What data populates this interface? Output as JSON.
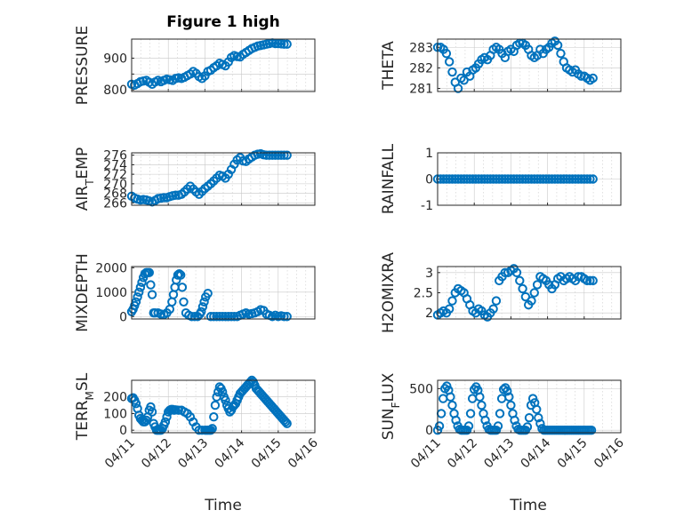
{
  "figure": {
    "title": "Figure 1 high",
    "marker_color": "#0072BD",
    "xlabel": "Time"
  },
  "chart_data": [
    {
      "type": "scatter",
      "ylabel": "PRESSURE",
      "ylabel_sub": "",
      "xlim": [
        0,
        5
      ],
      "ylim": [
        795,
        960
      ],
      "xticks": [
        "04/11",
        "04/12",
        "04/13",
        "04/14",
        "04/15",
        "04/16"
      ],
      "yticks": [
        800,
        850,
        900
      ],
      "ytick_labels": [
        "800",
        "",
        "900"
      ],
      "show_xticklabels": false,
      "show_title": true,
      "x": [
        0.0,
        0.08,
        0.16,
        0.24,
        0.32,
        0.4,
        0.48,
        0.56,
        0.64,
        0.72,
        0.8,
        0.88,
        0.96,
        1.04,
        1.12,
        1.2,
        1.28,
        1.36,
        1.44,
        1.52,
        1.6,
        1.68,
        1.76,
        1.84,
        1.92,
        2.0,
        2.08,
        2.16,
        2.24,
        2.32,
        2.4,
        2.48,
        2.56,
        2.64,
        2.72,
        2.8,
        2.88,
        2.96,
        3.04,
        3.12,
        3.2,
        3.28,
        3.36,
        3.44,
        3.52,
        3.6,
        3.68,
        3.76,
        3.84,
        3.92,
        4.0,
        4.08,
        4.16,
        4.24
      ],
      "y": [
        818,
        815,
        820,
        826,
        828,
        830,
        824,
        818,
        825,
        830,
        826,
        830,
        834,
        832,
        830,
        836,
        838,
        836,
        840,
        845,
        850,
        858,
        852,
        842,
        836,
        844,
        858,
        862,
        870,
        876,
        884,
        880,
        876,
        888,
        902,
        908,
        905,
        904,
        912,
        918,
        924,
        930,
        934,
        938,
        940,
        942,
        944,
        946,
        948,
        946,
        946,
        945,
        944,
        944
      ]
    },
    {
      "type": "scatter",
      "ylabel": "THETA",
      "ylabel_sub": "",
      "xlim": [
        0,
        5
      ],
      "ylim": [
        280.85,
        283.4
      ],
      "xticks": [
        "04/11",
        "04/12",
        "04/13",
        "04/14",
        "04/15",
        "04/16"
      ],
      "yticks": [
        281,
        282,
        283
      ],
      "ytick_labels": [
        "281",
        "282",
        "283"
      ],
      "show_xticklabels": false,
      "show_title": false,
      "x": [
        0.0,
        0.08,
        0.16,
        0.24,
        0.32,
        0.4,
        0.48,
        0.56,
        0.64,
        0.72,
        0.8,
        0.88,
        0.96,
        1.04,
        1.12,
        1.2,
        1.28,
        1.36,
        1.44,
        1.52,
        1.6,
        1.68,
        1.76,
        1.84,
        1.92,
        2.0,
        2.08,
        2.16,
        2.24,
        2.32,
        2.4,
        2.48,
        2.56,
        2.64,
        2.72,
        2.8,
        2.88,
        2.96,
        3.04,
        3.12,
        3.2,
        3.28,
        3.36,
        3.44,
        3.52,
        3.6,
        3.68,
        3.76,
        3.84,
        3.92,
        4.0,
        4.08,
        4.16,
        4.24
      ],
      "y": [
        283.0,
        283.0,
        282.9,
        282.7,
        282.3,
        281.8,
        281.3,
        281.0,
        281.5,
        281.4,
        281.8,
        281.6,
        281.9,
        282.0,
        282.2,
        282.4,
        282.5,
        282.4,
        282.6,
        282.9,
        283.0,
        282.9,
        282.7,
        282.5,
        282.8,
        282.9,
        282.8,
        283.1,
        283.2,
        283.2,
        283.1,
        282.9,
        282.6,
        282.5,
        282.6,
        282.9,
        282.7,
        282.9,
        283.0,
        283.2,
        283.3,
        283.1,
        282.7,
        282.3,
        282.0,
        281.9,
        281.8,
        281.9,
        281.7,
        281.6,
        281.6,
        281.5,
        281.4,
        281.5
      ]
    },
    {
      "type": "scatter",
      "ylabel": "AIR",
      "ylabel_sub": "T",
      "ylabel_tail": "EMP",
      "xlim": [
        0,
        5
      ],
      "ylim": [
        265.5,
        276.5
      ],
      "xticks": [
        "04/11",
        "04/12",
        "04/13",
        "04/14",
        "04/15",
        "04/16"
      ],
      "yticks": [
        266,
        268,
        270,
        272,
        274,
        276
      ],
      "ytick_labels": [
        "266",
        "268",
        "270",
        "272",
        "274",
        "276"
      ],
      "show_xticklabels": false,
      "show_title": false,
      "x": [
        0.0,
        0.08,
        0.16,
        0.24,
        0.32,
        0.4,
        0.48,
        0.56,
        0.64,
        0.72,
        0.8,
        0.88,
        0.96,
        1.04,
        1.12,
        1.2,
        1.28,
        1.36,
        1.44,
        1.52,
        1.6,
        1.68,
        1.76,
        1.84,
        1.92,
        2.0,
        2.08,
        2.16,
        2.24,
        2.32,
        2.4,
        2.48,
        2.56,
        2.64,
        2.72,
        2.8,
        2.88,
        2.96,
        3.04,
        3.12,
        3.2,
        3.28,
        3.36,
        3.44,
        3.52,
        3.6,
        3.68,
        3.76,
        3.84,
        3.92,
        4.0,
        4.08,
        4.16,
        4.24
      ],
      "y": [
        267.4,
        267.0,
        266.8,
        266.6,
        266.7,
        266.6,
        266.4,
        266.2,
        266.5,
        266.9,
        267.0,
        267.1,
        267.1,
        267.3,
        267.5,
        267.6,
        267.6,
        267.8,
        268.3,
        268.9,
        269.5,
        268.9,
        268.3,
        267.8,
        268.4,
        269.0,
        269.5,
        270.0,
        270.6,
        271.2,
        271.8,
        271.6,
        271.2,
        272.0,
        273.0,
        274.1,
        275.0,
        275.5,
        274.8,
        274.7,
        275.2,
        275.6,
        276.0,
        276.2,
        276.3,
        276.1,
        276.0,
        276.0,
        276.0,
        276.0,
        276.0,
        276.0,
        276.0,
        276.0
      ]
    },
    {
      "type": "scatter",
      "ylabel": "RAINFALL",
      "ylabel_sub": "",
      "xlim": [
        0,
        5
      ],
      "ylim": [
        -1,
        1
      ],
      "xticks": [
        "04/11",
        "04/12",
        "04/13",
        "04/14",
        "04/15",
        "04/16"
      ],
      "yticks": [
        -1,
        0,
        1
      ],
      "ytick_labels": [
        "-1",
        "0",
        "1"
      ],
      "show_xticklabels": false,
      "show_title": false,
      "x": [
        0.0,
        0.08,
        0.16,
        0.24,
        0.32,
        0.4,
        0.48,
        0.56,
        0.64,
        0.72,
        0.8,
        0.88,
        0.96,
        1.04,
        1.12,
        1.2,
        1.28,
        1.36,
        1.44,
        1.52,
        1.6,
        1.68,
        1.76,
        1.84,
        1.92,
        2.0,
        2.08,
        2.16,
        2.24,
        2.32,
        2.4,
        2.48,
        2.56,
        2.64,
        2.72,
        2.8,
        2.88,
        2.96,
        3.04,
        3.12,
        3.2,
        3.28,
        3.36,
        3.44,
        3.52,
        3.6,
        3.68,
        3.76,
        3.84,
        3.92,
        4.0,
        4.08,
        4.16,
        4.24
      ],
      "y": [
        0,
        0,
        0,
        0,
        0,
        0,
        0,
        0,
        0,
        0,
        0,
        0,
        0,
        0,
        0,
        0,
        0,
        0,
        0,
        0,
        0,
        0,
        0,
        0,
        0,
        0,
        0,
        0,
        0,
        0,
        0,
        0,
        0,
        0,
        0,
        0,
        0,
        0,
        0,
        0,
        0,
        0,
        0,
        0,
        0,
        0,
        0,
        0,
        0,
        0,
        0,
        0,
        0,
        0
      ]
    },
    {
      "type": "scatter",
      "ylabel": "MIXDEPTH",
      "ylabel_sub": "",
      "xlim": [
        0,
        5
      ],
      "ylim": [
        -100,
        2050
      ],
      "xticks": [
        "04/11",
        "04/12",
        "04/13",
        "04/14",
        "04/15",
        "04/16"
      ],
      "yticks": [
        0,
        1000,
        2000
      ],
      "ytick_labels": [
        "0",
        "1000",
        "2000"
      ],
      "show_xticklabels": false,
      "show_title": false,
      "x": [
        0.0,
        0.04,
        0.08,
        0.12,
        0.16,
        0.2,
        0.24,
        0.28,
        0.32,
        0.36,
        0.4,
        0.44,
        0.48,
        0.52,
        0.56,
        0.6,
        0.64,
        0.72,
        0.8,
        0.88,
        0.96,
        1.04,
        1.1,
        1.14,
        1.18,
        1.22,
        1.26,
        1.3,
        1.34,
        1.38,
        1.42,
        1.48,
        1.56,
        1.64,
        1.72,
        1.8,
        1.86,
        1.9,
        1.94,
        1.98,
        2.02,
        2.08,
        2.16,
        2.24,
        2.32,
        2.4,
        2.48,
        2.56,
        2.64,
        2.72,
        2.8,
        2.88,
        2.96,
        3.04,
        3.12,
        3.2,
        3.28,
        3.36,
        3.44,
        3.52,
        3.6,
        3.68,
        3.76,
        3.84,
        3.92,
        4.0,
        4.08,
        4.16,
        4.24
      ],
      "y": [
        200,
        300,
        450,
        600,
        800,
        1000,
        1200,
        1400,
        1600,
        1750,
        1800,
        1800,
        1800,
        1300,
        900,
        150,
        150,
        150,
        100,
        80,
        150,
        300,
        600,
        900,
        1200,
        1500,
        1700,
        1750,
        1700,
        1200,
        600,
        150,
        50,
        0,
        0,
        0,
        100,
        200,
        400,
        600,
        800,
        950,
        0,
        0,
        0,
        0,
        0,
        0,
        0,
        0,
        0,
        0,
        50,
        100,
        150,
        100,
        120,
        150,
        200,
        280,
        250,
        100,
        50,
        0,
        50,
        0,
        30,
        0,
        0
      ]
    },
    {
      "type": "scatter",
      "ylabel": "H2OMIXRA",
      "ylabel_sub": "",
      "xlim": [
        0,
        5
      ],
      "ylim": [
        1.85,
        3.15
      ],
      "xticks": [
        "04/11",
        "04/12",
        "04/13",
        "04/14",
        "04/15",
        "04/16"
      ],
      "yticks": [
        2,
        2.5,
        3
      ],
      "ytick_labels": [
        "2",
        "2.5",
        "3"
      ],
      "show_xticklabels": false,
      "show_title": false,
      "x": [
        0.0,
        0.08,
        0.16,
        0.24,
        0.32,
        0.4,
        0.48,
        0.56,
        0.64,
        0.72,
        0.8,
        0.88,
        0.96,
        1.04,
        1.12,
        1.2,
        1.28,
        1.36,
        1.44,
        1.52,
        1.6,
        1.68,
        1.76,
        1.84,
        1.92,
        2.0,
        2.08,
        2.16,
        2.24,
        2.32,
        2.4,
        2.48,
        2.56,
        2.64,
        2.72,
        2.8,
        2.88,
        2.96,
        3.04,
        3.12,
        3.2,
        3.28,
        3.36,
        3.44,
        3.52,
        3.6,
        3.68,
        3.76,
        3.84,
        3.92,
        4.0,
        4.08,
        4.16,
        4.24
      ],
      "y": [
        1.95,
        2.0,
        2.05,
        2.0,
        2.1,
        2.3,
        2.5,
        2.6,
        2.55,
        2.5,
        2.35,
        2.2,
        2.05,
        2.0,
        2.1,
        2.05,
        1.95,
        1.9,
        2.0,
        2.1,
        2.3,
        2.8,
        2.9,
        3.0,
        3.0,
        3.05,
        3.1,
        3.0,
        2.8,
        2.6,
        2.4,
        2.2,
        2.3,
        2.5,
        2.7,
        2.9,
        2.85,
        2.8,
        2.7,
        2.6,
        2.7,
        2.85,
        2.9,
        2.8,
        2.85,
        2.9,
        2.85,
        2.8,
        2.9,
        2.9,
        2.85,
        2.8,
        2.8,
        2.8
      ]
    },
    {
      "type": "scatter",
      "ylabel": "TERR",
      "ylabel_sub": "M",
      "ylabel_tail": "SL",
      "xlim": [
        0,
        5
      ],
      "ylim": [
        -15,
        300
      ],
      "xticks": [
        "04/11",
        "04/12",
        "04/13",
        "04/14",
        "04/15",
        "04/16"
      ],
      "yticks": [
        0,
        100,
        200
      ],
      "ytick_labels": [
        "0",
        "100",
        "200"
      ],
      "show_xticklabels": true,
      "show_title": false,
      "x": [
        0.0,
        0.04,
        0.08,
        0.12,
        0.16,
        0.2,
        0.24,
        0.28,
        0.32,
        0.36,
        0.4,
        0.44,
        0.48,
        0.52,
        0.56,
        0.6,
        0.64,
        0.68,
        0.72,
        0.76,
        0.8,
        0.84,
        0.88,
        0.92,
        0.96,
        1.0,
        1.04,
        1.08,
        1.12,
        1.16,
        1.2,
        1.28,
        1.36,
        1.44,
        1.52,
        1.6,
        1.68,
        1.76,
        1.84,
        1.92,
        2.0,
        2.04,
        2.08,
        2.12,
        2.16,
        2.2,
        2.24,
        2.28,
        2.32,
        2.36,
        2.4,
        2.44,
        2.48,
        2.52,
        2.56,
        2.6,
        2.64,
        2.68,
        2.72,
        2.76,
        2.8,
        2.84,
        2.88,
        2.92,
        2.96,
        3.0,
        3.04,
        3.08,
        3.12,
        3.16,
        3.2,
        3.24,
        3.28,
        3.32,
        3.36,
        3.4,
        3.44,
        3.48,
        3.52,
        3.56,
        3.6,
        3.64,
        3.68,
        3.72,
        3.76,
        3.8,
        3.84,
        3.88,
        3.92,
        3.96,
        4.0,
        4.04,
        4.08,
        4.12,
        4.16,
        4.2,
        4.24
      ],
      "y": [
        190,
        195,
        180,
        160,
        130,
        90,
        70,
        60,
        50,
        50,
        60,
        80,
        120,
        140,
        110,
        40,
        20,
        0,
        0,
        0,
        0,
        10,
        30,
        50,
        80,
        110,
        120,
        125,
        125,
        120,
        122,
        120,
        120,
        110,
        100,
        80,
        50,
        20,
        0,
        0,
        0,
        0,
        0,
        0,
        0,
        10,
        80,
        150,
        200,
        230,
        260,
        250,
        230,
        200,
        180,
        150,
        130,
        110,
        120,
        140,
        150,
        160,
        180,
        200,
        220,
        230,
        240,
        250,
        260,
        270,
        280,
        290,
        300,
        290,
        270,
        250,
        240,
        230,
        220,
        210,
        200,
        190,
        180,
        170,
        160,
        150,
        140,
        130,
        120,
        110,
        100,
        90,
        80,
        70,
        60,
        50,
        40
      ]
    },
    {
      "type": "scatter",
      "ylabel": "SUN",
      "ylabel_sub": "F",
      "ylabel_tail": "LUX",
      "xlim": [
        0,
        5
      ],
      "ylim": [
        -30,
        600
      ],
      "xticks": [
        "04/11",
        "04/12",
        "04/13",
        "04/14",
        "04/15",
        "04/16"
      ],
      "yticks": [
        0,
        500
      ],
      "ytick_labels": [
        "0",
        "500"
      ],
      "show_xticklabels": true,
      "show_title": false,
      "x": [
        0.0,
        0.05,
        0.1,
        0.15,
        0.2,
        0.25,
        0.3,
        0.35,
        0.4,
        0.45,
        0.5,
        0.55,
        0.6,
        0.65,
        0.7,
        0.75,
        0.8,
        0.85,
        0.9,
        0.95,
        1.0,
        1.05,
        1.1,
        1.15,
        1.2,
        1.25,
        1.3,
        1.35,
        1.4,
        1.45,
        1.5,
        1.55,
        1.6,
        1.65,
        1.7,
        1.75,
        1.8,
        1.85,
        1.9,
        1.95,
        2.0,
        2.05,
        2.1,
        2.15,
        2.2,
        2.25,
        2.3,
        2.35,
        2.4,
        2.45,
        2.5,
        2.55,
        2.6,
        2.65,
        2.7,
        2.75,
        2.8,
        2.85,
        2.9,
        2.95,
        3.0,
        3.05,
        3.1,
        3.15,
        3.2,
        3.25,
        3.3,
        3.35,
        3.4,
        3.45,
        3.5,
        3.55,
        3.6,
        3.65,
        3.7,
        3.75,
        3.8,
        3.85,
        3.9,
        3.95,
        4.0,
        4.05,
        4.1,
        4.15,
        4.2
      ],
      "y": [
        0,
        50,
        200,
        380,
        500,
        530,
        480,
        400,
        300,
        200,
        120,
        50,
        10,
        0,
        0,
        0,
        0,
        50,
        200,
        380,
        490,
        520,
        480,
        400,
        300,
        200,
        120,
        50,
        10,
        0,
        0,
        0,
        0,
        50,
        200,
        380,
        490,
        510,
        470,
        400,
        300,
        200,
        120,
        50,
        10,
        0,
        0,
        0,
        0,
        40,
        150,
        300,
        380,
        330,
        250,
        150,
        80,
        20,
        0,
        0,
        0,
        0,
        0,
        0,
        0,
        0,
        0,
        0,
        0,
        0,
        0,
        0,
        0,
        0,
        0,
        0,
        0,
        0,
        0,
        0,
        0,
        0,
        0,
        0,
        0
      ]
    }
  ]
}
